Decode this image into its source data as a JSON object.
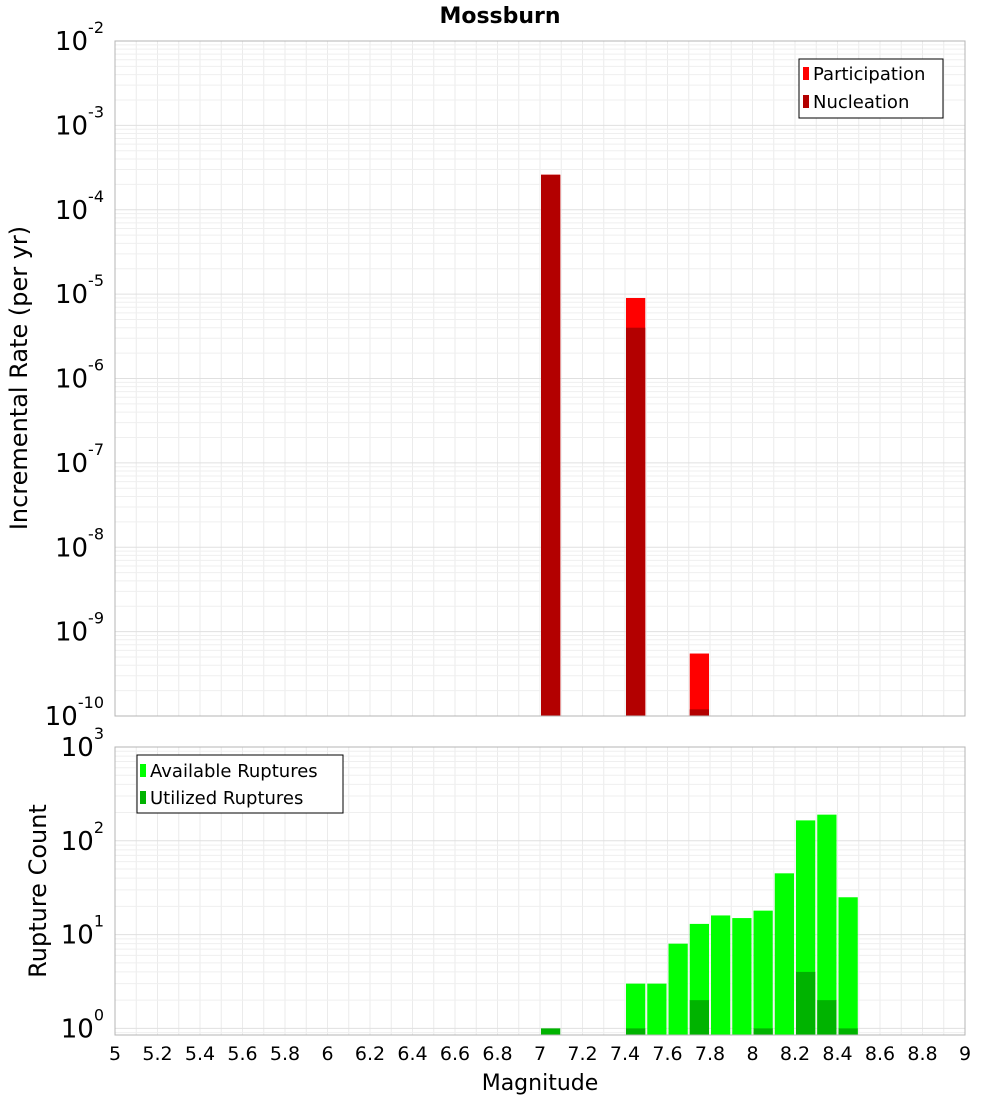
{
  "chart_data": [
    {
      "type": "bar",
      "title": "Mossburn",
      "ylabel": "Incremental Rate (per yr)",
      "xlabel": "",
      "yscale": "log",
      "ylim": [
        1e-10,
        0.01
      ],
      "xlim": [
        5,
        9
      ],
      "bar_width": 0.1,
      "grid": true,
      "legend_position": "top-right",
      "y_ticks": [
        {
          "m": "10",
          "e": "-10"
        },
        {
          "m": "10",
          "e": "-9"
        },
        {
          "m": "10",
          "e": "-8"
        },
        {
          "m": "10",
          "e": "-7"
        },
        {
          "m": "10",
          "e": "-6"
        },
        {
          "m": "10",
          "e": "-5"
        },
        {
          "m": "10",
          "e": "-4"
        },
        {
          "m": "10",
          "e": "-3"
        },
        {
          "m": "10",
          "e": "-2"
        }
      ],
      "series": [
        {
          "name": "Participation",
          "color": "#ff0000",
          "points": [
            [
              7.05,
              0.00026
            ],
            [
              7.45,
              9e-06
            ],
            [
              7.75,
              5.5e-10
            ]
          ]
        },
        {
          "name": "Nucleation",
          "color": "#b30000",
          "points": [
            [
              7.05,
              0.00026
            ],
            [
              7.45,
              4e-06
            ],
            [
              7.75,
              1.2e-10
            ]
          ]
        }
      ]
    },
    {
      "type": "bar",
      "title": "",
      "ylabel": "Rupture Count",
      "xlabel": "Magnitude",
      "yscale": "log",
      "ylim": [
        0.85,
        1000
      ],
      "xlim": [
        5,
        9
      ],
      "bar_width": 0.1,
      "grid": true,
      "legend_position": "top-left",
      "x_ticks": [
        "5",
        "5.2",
        "5.4",
        "5.6",
        "5.8",
        "6",
        "6.2",
        "6.4",
        "6.6",
        "6.8",
        "7",
        "7.2",
        "7.4",
        "7.6",
        "7.8",
        "8",
        "8.2",
        "8.4",
        "8.6",
        "8.8",
        "9"
      ],
      "y_ticks": [
        {
          "m": "10",
          "e": "0"
        },
        {
          "m": "10",
          "e": "1"
        },
        {
          "m": "10",
          "e": "2"
        },
        {
          "m": "10",
          "e": "3"
        }
      ],
      "series": [
        {
          "name": "Available Ruptures",
          "color": "#00ff00",
          "points": [
            [
              7.45,
              3
            ],
            [
              7.55,
              3
            ],
            [
              7.65,
              8
            ],
            [
              7.75,
              13
            ],
            [
              7.85,
              16
            ],
            [
              7.95,
              15
            ],
            [
              8.05,
              18
            ],
            [
              8.15,
              45
            ],
            [
              8.25,
              165
            ],
            [
              8.35,
              190
            ],
            [
              8.45,
              25
            ]
          ]
        },
        {
          "name": "Utilized Ruptures",
          "color": "#00b300",
          "points": [
            [
              7.05,
              1
            ],
            [
              7.45,
              1
            ],
            [
              7.75,
              2
            ],
            [
              8.05,
              1
            ],
            [
              8.25,
              4
            ],
            [
              8.35,
              2
            ],
            [
              8.45,
              1
            ]
          ]
        }
      ]
    }
  ]
}
